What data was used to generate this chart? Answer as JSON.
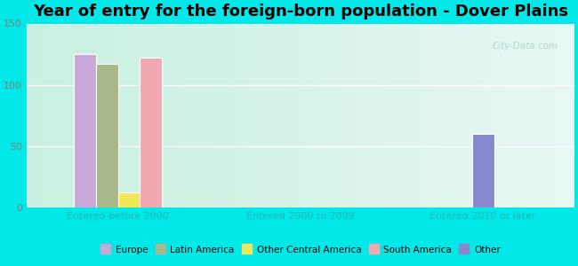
{
  "title": "Year of entry for the foreign-born population - Dover Plains",
  "categories": [
    "Entered before 2000",
    "Entered 2000 to 2009",
    "Entered 2010 or later"
  ],
  "series": {
    "Europe": [
      125,
      0,
      0
    ],
    "Latin America": [
      117,
      0,
      0
    ],
    "Other Central America": [
      12,
      0,
      0
    ],
    "South America": [
      122,
      0,
      0
    ],
    "Other": [
      0,
      0,
      60
    ]
  },
  "colors": {
    "Europe": "#c8a8d8",
    "Latin America": "#a8b888",
    "Other Central America": "#f0e858",
    "South America": "#f0a8b0",
    "Other": "#8888cc"
  },
  "ylim": [
    0,
    150
  ],
  "yticks": [
    0,
    50,
    100,
    150
  ],
  "background_color": "#00e8e8",
  "plot_bg_left": "#c8f0e0",
  "plot_bg_right": "#e8f8f4",
  "title_fontsize": 13,
  "axis_label_color": "#20b8b0",
  "tick_label_color": "#808080",
  "watermark": "City-Data.com",
  "bar_width": 0.12,
  "legend_marker_size": 8
}
